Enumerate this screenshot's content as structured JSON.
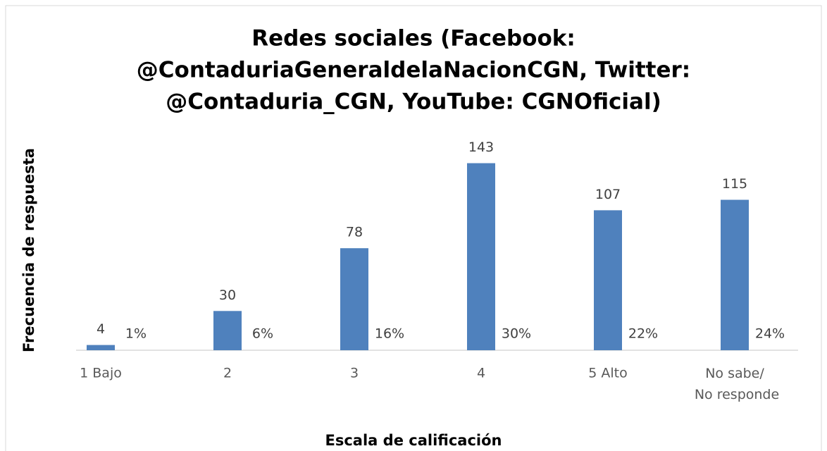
{
  "chart_data": {
    "type": "bar",
    "title": [
      "Redes sociales (Facebook:",
      "@ContaduriaGeneraldelaNacionCGN, Twitter:",
      "@Contaduria_CGN, YouTube: CGNOficial)"
    ],
    "categories": [
      "1 Bajo",
      "2",
      "3",
      "4",
      "5 Alto",
      "No sabe/ No responde"
    ],
    "series": [
      {
        "color": "#4f81bd",
        "values": [
          4,
          30,
          78,
          143,
          107,
          115
        ]
      },
      {
        "values": [
          1,
          6,
          16,
          30,
          22,
          24
        ],
        "value_labels": [
          "1%",
          "6%",
          "16%",
          "30%",
          "22%",
          "24%"
        ]
      }
    ],
    "ylim": [
      0,
      160
    ],
    "x_label": "Escala de calificación",
    "y_label": "Frecuencia de respuesta"
  }
}
